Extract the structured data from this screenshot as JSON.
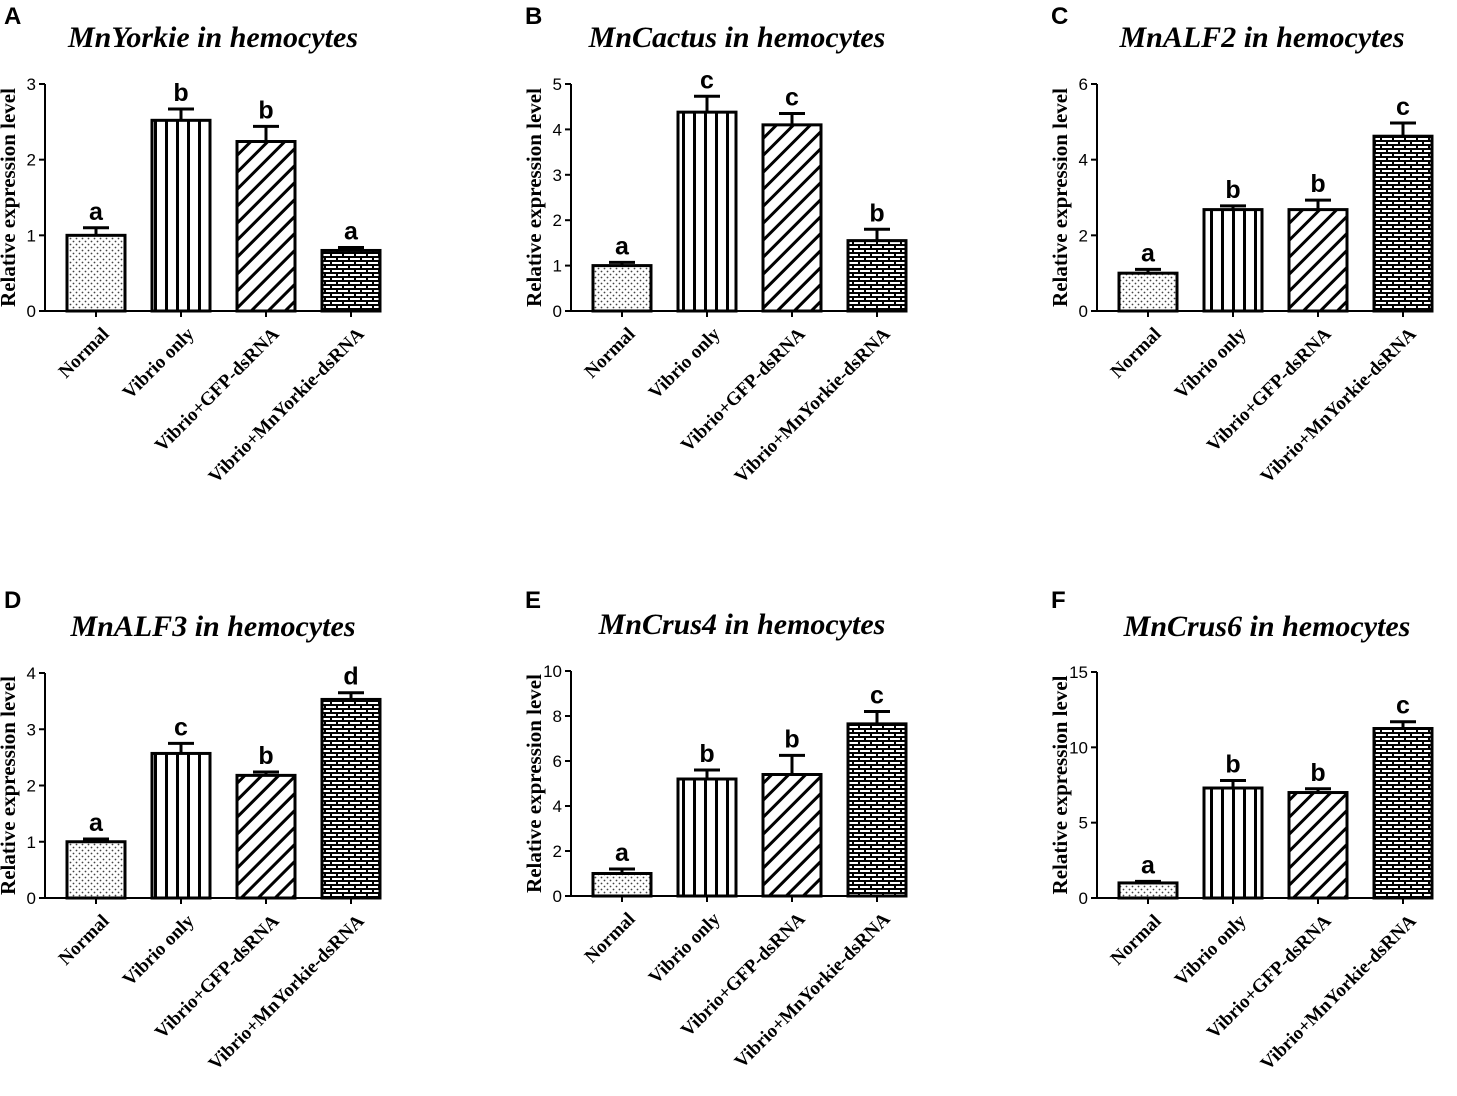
{
  "chart_data": [
    {
      "letter": "A",
      "type": "bar",
      "title": "MnYorkie in hemocytes",
      "ylabel": "Relative expression level",
      "xlabel": "",
      "categories": [
        "Normal",
        "Vibrio only",
        "Vibrio+GFP-dsRNA",
        "Vibrio+MnYorkie-dsRNA"
      ],
      "values": [
        1.0,
        2.52,
        2.24,
        0.8
      ],
      "errors": [
        0.1,
        0.15,
        0.2,
        0.04
      ],
      "significance": [
        "a",
        "b",
        "b",
        "a"
      ],
      "ylim": [
        0,
        3
      ],
      "yticks": [
        0,
        1,
        2,
        3
      ]
    },
    {
      "letter": "B",
      "type": "bar",
      "title": "MnCactus in hemocytes",
      "ylabel": "Relative expression level",
      "xlabel": "",
      "categories": [
        "Normal",
        "Vibrio only",
        "Vibrio+GFP-dsRNA",
        "Vibrio+MnYorkie-dsRNA"
      ],
      "values": [
        1.0,
        4.38,
        4.1,
        1.55
      ],
      "errors": [
        0.07,
        0.35,
        0.25,
        0.25
      ],
      "significance": [
        "a",
        "c",
        "c",
        "b"
      ],
      "ylim": [
        0,
        5
      ],
      "yticks": [
        0,
        1,
        2,
        3,
        4,
        5
      ]
    },
    {
      "letter": "C",
      "type": "bar",
      "title": "MnALF2 in hemocytes",
      "ylabel": "Relative expression level",
      "xlabel": "",
      "categories": [
        "Normal",
        "Vibrio only",
        "Vibrio+GFP-dsRNA",
        "Vibrio+MnYorkie-dsRNA"
      ],
      "values": [
        1.0,
        2.68,
        2.68,
        4.62
      ],
      "errors": [
        0.1,
        0.1,
        0.25,
        0.35
      ],
      "significance": [
        "a",
        "b",
        "b",
        "c"
      ],
      "ylim": [
        0,
        6
      ],
      "yticks": [
        0,
        2,
        4,
        6
      ]
    },
    {
      "letter": "D",
      "type": "bar",
      "title": "MnALF3 in hemocytes",
      "ylabel": "Relative expression level",
      "xlabel": "",
      "categories": [
        "Normal",
        "Vibrio only",
        "Vibrio+GFP-dsRNA",
        "Vibrio+MnYorkie-dsRNA"
      ],
      "values": [
        1.0,
        2.57,
        2.18,
        3.53
      ],
      "errors": [
        0.05,
        0.18,
        0.06,
        0.12
      ],
      "significance": [
        "a",
        "c",
        "b",
        "d"
      ],
      "ylim": [
        0,
        4
      ],
      "yticks": [
        0,
        1,
        2,
        3,
        4
      ]
    },
    {
      "letter": "E",
      "type": "bar",
      "title": "MnCrus4 in hemocytes",
      "ylabel": "Relative expression level",
      "xlabel": "",
      "categories": [
        "Normal",
        "Vibrio only",
        "Vibrio+GFP-dsRNA",
        "Vibrio+MnYorkie-dsRNA"
      ],
      "values": [
        1.0,
        5.2,
        5.4,
        7.65
      ],
      "errors": [
        0.2,
        0.4,
        0.85,
        0.55
      ],
      "significance": [
        "a",
        "b",
        "b",
        "c"
      ],
      "ylim": [
        0,
        10
      ],
      "yticks": [
        0,
        2,
        4,
        6,
        8,
        10
      ]
    },
    {
      "letter": "F",
      "type": "bar",
      "title": "MnCrus6 in hemocytes",
      "ylabel": "Relative expression level",
      "xlabel": "",
      "categories": [
        "Normal",
        "Vibrio only",
        "Vibrio+GFP-dsRNA",
        "Vibrio+MnYorkie-dsRNA"
      ],
      "values": [
        1.0,
        7.3,
        7.0,
        11.25
      ],
      "errors": [
        0.1,
        0.5,
        0.25,
        0.45
      ],
      "significance": [
        "a",
        "b",
        "b",
        "c"
      ],
      "ylim": [
        0,
        15
      ],
      "yticks": [
        0,
        5,
        10,
        15
      ]
    }
  ]
}
